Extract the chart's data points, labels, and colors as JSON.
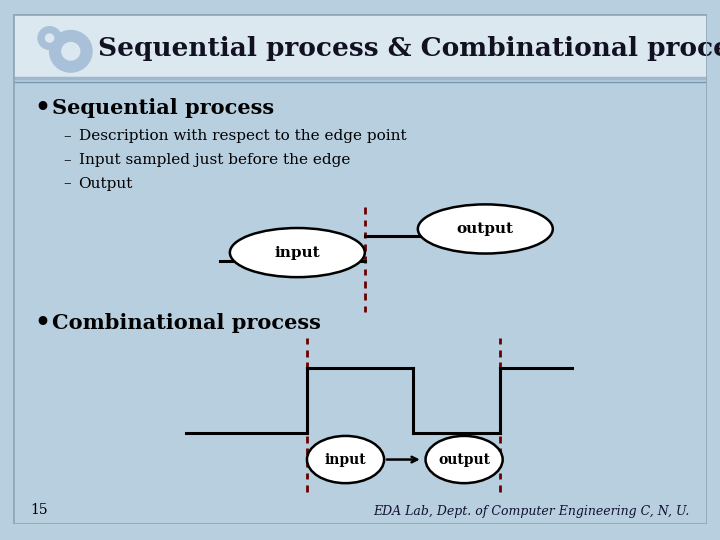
{
  "title": "Sequential process & Combinational process",
  "outer_bg": "#b8cfe0",
  "slide_bg": "#dce8f0",
  "header_bg": "#dce8f0",
  "header_line1": "#a0b8cc",
  "header_line2": "#7898b0",
  "bullet1": "Sequential process",
  "sub1": "Description with respect to the edge point",
  "sub2": "Input sampled just before the edge",
  "sub3": "Output",
  "bullet2": "Combinational process",
  "page_num": "15",
  "footer": "EDA Lab, Dept. of Computer Engineering C, N, U.",
  "dashed_color": "#6b0000",
  "line_color": "#000000",
  "icon_color": "#a8c0d8",
  "icon_inner": "#dce8f0"
}
